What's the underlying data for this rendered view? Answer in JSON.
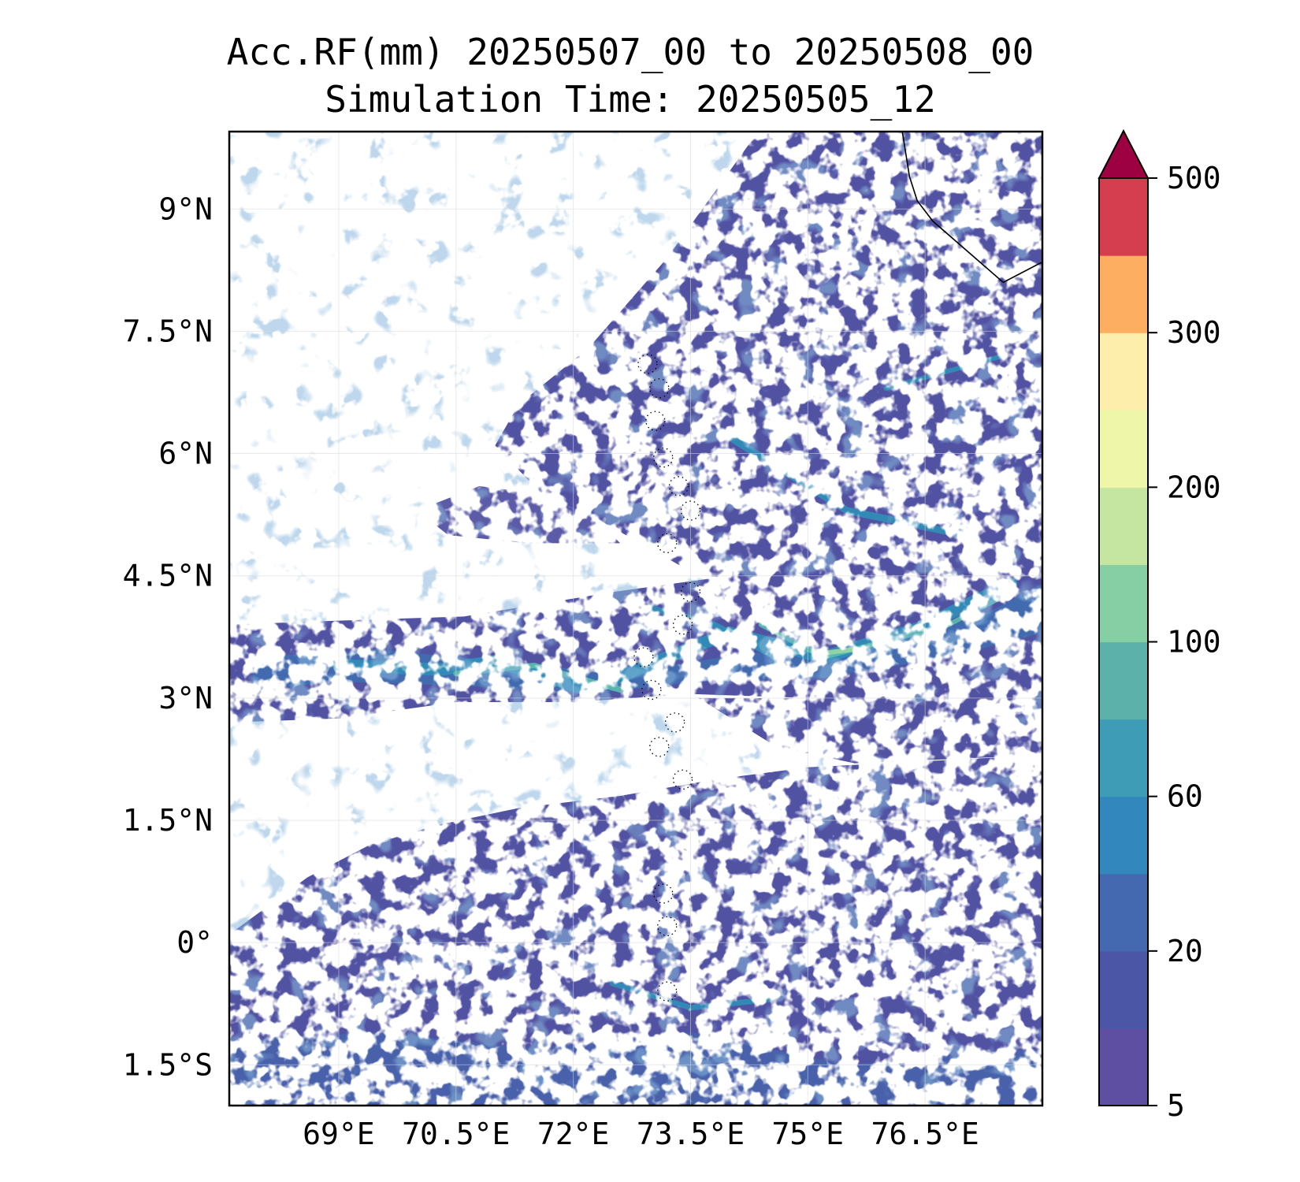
{
  "title": {
    "line1": "Acc.RF(mm) 20250507_00 to 20250508_00",
    "line2": "Simulation Time: 20250505_12"
  },
  "map": {
    "extent": {
      "lon_min": 67.6,
      "lon_max": 78.0,
      "lat_min": -2.0,
      "lat_max": 9.95
    },
    "x_ticks": [
      {
        "value": 69.0,
        "label": "69°E"
      },
      {
        "value": 70.5,
        "label": "70.5°E"
      },
      {
        "value": 72.0,
        "label": "72°E"
      },
      {
        "value": 73.5,
        "label": "73.5°E"
      },
      {
        "value": 75.0,
        "label": "75°E"
      },
      {
        "value": 76.5,
        "label": "76.5°E"
      }
    ],
    "y_ticks": [
      {
        "value": 9.0,
        "label": "9°N"
      },
      {
        "value": 7.5,
        "label": "7.5°N"
      },
      {
        "value": 6.0,
        "label": "6°N"
      },
      {
        "value": 4.5,
        "label": "4.5°N"
      },
      {
        "value": 3.0,
        "label": "3°N"
      },
      {
        "value": 1.5,
        "label": "1.5°N"
      },
      {
        "value": 0.0,
        "label": "0°"
      },
      {
        "value": -1.5,
        "label": "1.5°S"
      }
    ],
    "gridlines": true,
    "field_colors": {
      "base": "#5252a3",
      "light": "#5e54a6",
      "mid": "#3f6db0",
      "high": "#2f8fb8",
      "peak": "#5bbcaf",
      "max": "#9bd6a4"
    }
  },
  "colorbar": {
    "orientation": "vertical",
    "extend": "max",
    "levels": [
      5,
      10,
      20,
      40,
      60,
      80,
      100,
      150,
      200,
      250,
      300,
      400,
      500
    ],
    "colors": [
      "#5e4fa2",
      "#4b57a6",
      "#4469b0",
      "#3288bd",
      "#3f9cb6",
      "#5cb1aa",
      "#86cfa5",
      "#c5e6a1",
      "#eef7a9",
      "#fdeeab",
      "#fdae61",
      "#d53e4f"
    ],
    "extend_color": "#9e0142",
    "tick_labels": [
      {
        "value": 5,
        "label": "5"
      },
      {
        "value": 20,
        "label": "20"
      },
      {
        "value": 60,
        "label": "60"
      },
      {
        "value": 100,
        "label": "100"
      },
      {
        "value": 200,
        "label": "200"
      },
      {
        "value": 300,
        "label": "300"
      },
      {
        "value": 500,
        "label": "500"
      }
    ]
  }
}
